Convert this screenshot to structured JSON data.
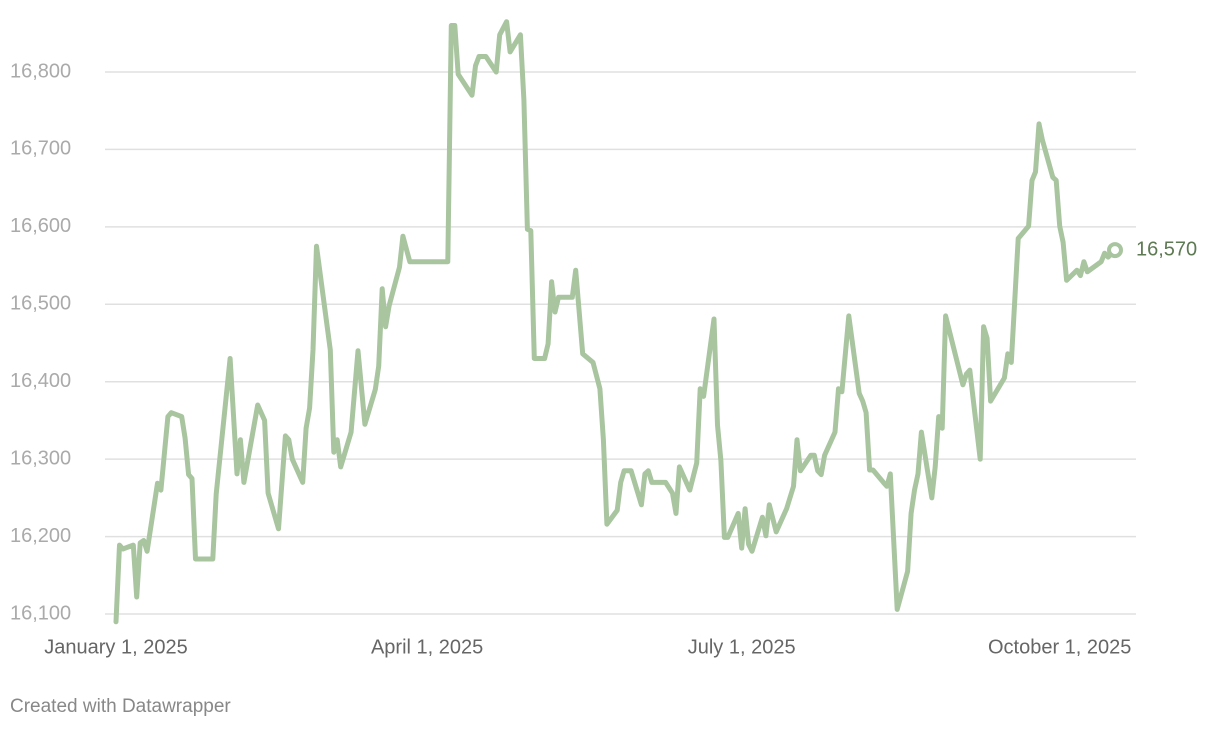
{
  "chart_data": {
    "type": "line",
    "color": "#a8c5a0",
    "grid": true,
    "credit": "Created with Datawrapper",
    "xlim": [
      "2025-01-01",
      "2025-10-17"
    ],
    "xticks": [
      {
        "value": "2025-01-01",
        "label": "January 1, 2025"
      },
      {
        "value": "2025-04-01",
        "label": "April 1, 2025"
      },
      {
        "value": "2025-07-01",
        "label": "July 1, 2025"
      },
      {
        "value": "2025-10-01",
        "label": "October 1, 2025"
      }
    ],
    "ylim": [
      16080,
      16870
    ],
    "yticks": [
      {
        "value": 16100,
        "label": "16,100"
      },
      {
        "value": 16200,
        "label": "16,200"
      },
      {
        "value": 16300,
        "label": "16,300"
      },
      {
        "value": 16400,
        "label": "16,400"
      },
      {
        "value": 16500,
        "label": "16,500"
      },
      {
        "value": 16600,
        "label": "16,600"
      },
      {
        "value": 16700,
        "label": "16,700"
      },
      {
        "value": 16800,
        "label": "16,800"
      }
    ],
    "x": [
      "2025-01-01",
      "2025-01-02",
      "2025-01-03",
      "2025-01-06",
      "2025-01-07",
      "2025-01-08",
      "2025-01-09",
      "2025-01-10",
      "2025-01-13",
      "2025-01-14",
      "2025-01-16",
      "2025-01-17",
      "2025-01-20",
      "2025-01-21",
      "2025-01-22",
      "2025-01-23",
      "2025-01-24",
      "2025-01-29",
      "2025-01-30",
      "2025-02-03",
      "2025-02-05",
      "2025-02-06",
      "2025-02-07",
      "2025-02-11",
      "2025-02-13",
      "2025-02-14",
      "2025-02-17",
      "2025-02-19",
      "2025-02-20",
      "2025-02-21",
      "2025-02-24",
      "2025-02-25",
      "2025-02-26",
      "2025-02-27",
      "2025-02-28",
      "2025-03-04",
      "2025-03-05",
      "2025-03-06",
      "2025-03-07",
      "2025-03-10",
      "2025-03-12",
      "2025-03-14",
      "2025-03-17",
      "2025-03-18",
      "2025-03-19",
      "2025-03-20",
      "2025-03-21",
      "2025-03-24",
      "2025-03-25",
      "2025-03-27",
      "2025-04-07",
      "2025-04-08",
      "2025-04-09",
      "2025-04-10",
      "2025-04-14",
      "2025-04-15",
      "2025-04-16",
      "2025-04-18",
      "2025-04-21",
      "2025-04-22",
      "2025-04-24",
      "2025-04-25",
      "2025-04-28",
      "2025-04-29",
      "2025-04-30",
      "2025-05-01",
      "2025-05-02",
      "2025-05-05",
      "2025-05-06",
      "2025-05-07",
      "2025-05-08",
      "2025-05-09",
      "2025-05-13",
      "2025-05-14",
      "2025-05-16",
      "2025-05-19",
      "2025-05-21",
      "2025-05-22",
      "2025-05-23",
      "2025-05-26",
      "2025-05-27",
      "2025-05-28",
      "2025-05-30",
      "2025-06-02",
      "2025-06-03",
      "2025-06-04",
      "2025-06-05",
      "2025-06-09",
      "2025-06-11",
      "2025-06-12",
      "2025-06-13",
      "2025-06-16",
      "2025-06-18",
      "2025-06-19",
      "2025-06-20",
      "2025-06-23",
      "2025-06-24",
      "2025-06-25",
      "2025-06-26",
      "2025-06-27",
      "2025-06-30",
      "2025-07-01",
      "2025-07-02",
      "2025-07-03",
      "2025-07-04",
      "2025-07-07",
      "2025-07-08",
      "2025-07-09",
      "2025-07-11",
      "2025-07-14",
      "2025-07-16",
      "2025-07-17",
      "2025-07-18",
      "2025-07-21",
      "2025-07-22",
      "2025-07-23",
      "2025-07-24",
      "2025-07-25",
      "2025-07-28",
      "2025-07-29",
      "2025-07-30",
      "2025-08-01",
      "2025-08-04",
      "2025-08-05",
      "2025-08-06",
      "2025-08-07",
      "2025-08-08",
      "2025-08-11",
      "2025-08-12",
      "2025-08-13",
      "2025-08-15",
      "2025-08-18",
      "2025-08-19",
      "2025-08-20",
      "2025-08-21",
      "2025-08-22",
      "2025-08-25",
      "2025-08-26",
      "2025-08-27",
      "2025-08-28",
      "2025-08-29",
      "2025-09-03",
      "2025-09-04",
      "2025-09-05",
      "2025-09-08",
      "2025-09-09",
      "2025-09-10",
      "2025-09-11",
      "2025-09-15",
      "2025-09-16",
      "2025-09-17",
      "2025-09-19",
      "2025-09-22",
      "2025-09-23",
      "2025-09-24",
      "2025-09-25",
      "2025-09-26",
      "2025-09-29",
      "2025-09-30",
      "2025-10-01",
      "2025-10-02",
      "2025-10-03",
      "2025-10-06",
      "2025-10-07",
      "2025-10-08",
      "2025-10-09",
      "2025-10-13",
      "2025-10-14",
      "2025-10-15",
      "2025-10-17"
    ],
    "values": [
      16090,
      16189,
      16184,
      16189,
      16122,
      16192,
      16195,
      16181,
      16269,
      16260,
      16355,
      16360,
      16355,
      16327,
      16280,
      16275,
      16171,
      16171,
      16255,
      16430,
      16281,
      16325,
      16270,
      16370,
      16350,
      16256,
      16210,
      16330,
      16325,
      16300,
      16270,
      16340,
      16366,
      16441,
      16575,
      16441,
      16309,
      16325,
      16290,
      16335,
      16440,
      16345,
      16390,
      16420,
      16520,
      16471,
      16498,
      16548,
      16588,
      16555,
      16555,
      16860,
      16860,
      16797,
      16770,
      16808,
      16820,
      16820,
      16800,
      16848,
      16865,
      16826,
      16848,
      16764,
      16597,
      16595,
      16430,
      16430,
      16449,
      16529,
      16490,
      16509,
      16509,
      16544,
      16436,
      16425,
      16391,
      16325,
      16216,
      16234,
      16270,
      16285,
      16285,
      16241,
      16281,
      16285,
      16270,
      16270,
      16256,
      16230,
      16290,
      16260,
      16295,
      16391,
      16381,
      16481,
      16344,
      16298,
      16199,
      16199,
      16230,
      16185,
      16236,
      16190,
      16181,
      16225,
      16201,
      16241,
      16206,
      16236,
      16265,
      16325,
      16285,
      16305,
      16305,
      16285,
      16280,
      16305,
      16335,
      16391,
      16387,
      16485,
      16385,
      16375,
      16360,
      16286,
      16286,
      16270,
      16265,
      16281,
      16106,
      16155,
      16230,
      16260,
      16281,
      16335,
      16250,
      16290,
      16355,
      16340,
      16485,
      16396,
      16410,
      16415,
      16300,
      16471,
      16456,
      16375,
      16405,
      16436,
      16425,
      16585,
      16601,
      16660,
      16671,
      16733,
      16712,
      16664,
      16660,
      16601,
      16580,
      16531,
      16544,
      16537,
      16555,
      16542,
      16555,
      16566,
      16561,
      16570
    ],
    "value_labels": [
      null,
      null,
      null,
      null,
      null,
      null,
      null,
      null,
      null,
      null,
      null,
      null,
      null,
      null,
      null,
      null,
      null,
      null,
      null,
      null,
      null,
      null,
      null,
      null,
      null,
      null,
      null,
      null,
      null,
      null,
      null,
      null,
      null,
      null,
      null,
      null,
      null,
      null,
      null,
      null,
      null,
      null,
      null,
      null,
      null,
      null,
      null,
      null,
      null,
      null,
      null,
      null,
      null,
      null,
      null,
      null,
      null,
      null,
      null,
      null,
      null,
      null,
      null,
      null,
      null,
      null,
      null,
      null,
      null,
      null,
      null,
      null,
      null,
      null,
      null,
      null,
      null,
      null,
      null,
      null,
      null,
      null,
      null,
      null,
      null,
      null,
      null,
      null,
      null,
      null,
      null,
      null,
      null,
      null,
      null,
      null,
      null,
      null,
      null,
      null,
      null,
      null,
      null,
      null,
      null,
      null,
      null,
      null,
      null,
      null,
      null,
      null,
      null,
      null,
      null,
      null,
      null,
      null,
      null,
      null,
      null,
      null,
      null,
      null,
      null,
      null,
      null,
      null,
      null,
      null,
      null,
      null,
      null,
      null,
      null,
      null,
      null,
      null,
      null,
      null,
      null,
      null,
      null,
      null,
      null,
      null,
      null,
      null,
      null,
      null,
      null,
      null,
      null,
      null,
      null,
      null,
      null,
      null,
      null,
      null,
      null,
      null,
      null,
      null,
      null,
      null,
      null,
      null,
      null,
      "16,570"
    ]
  }
}
